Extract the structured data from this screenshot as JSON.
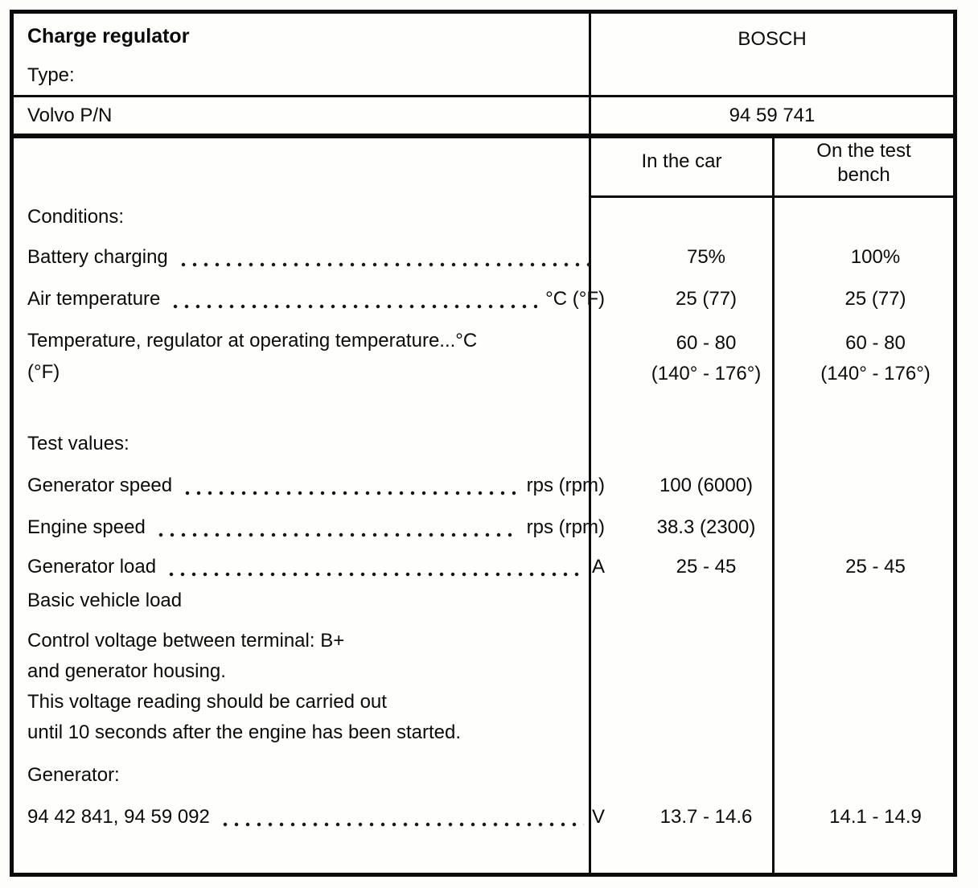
{
  "doc": {
    "title": "Charge regulator",
    "type_label": "Type:",
    "brand": "BOSCH",
    "pn_label": "Volvo P/N",
    "pn_value": "94 59 741",
    "col_in_car": "In the car",
    "col_test_bench": "On the test bench"
  },
  "rows": [
    {
      "kind": "heading",
      "label": "Conditions:"
    },
    {
      "kind": "spec",
      "label": "Battery charging",
      "unit": "",
      "car": "75%",
      "bench": "100%"
    },
    {
      "kind": "spec",
      "label": "Air temperature",
      "unit": "°C (°F)",
      "car": "25 (77)",
      "bench": "25 (77)"
    },
    {
      "kind": "spec2",
      "label": "Temperature, regulator at operating temperature...°C",
      "label2": "(°F)",
      "car": "60 - 80",
      "car2": "(140° - 176°)",
      "bench": "60 - 80",
      "bench2": "(140° - 176°)"
    },
    {
      "kind": "heading",
      "label": "Test values:"
    },
    {
      "kind": "spec",
      "label": "Generator speed",
      "unit": "rps (rpm)",
      "car": "100 (6000)",
      "bench": ""
    },
    {
      "kind": "spec",
      "label": "Engine speed",
      "unit": "rps (rpm)",
      "car": "38.3 (2300)",
      "bench": ""
    },
    {
      "kind": "spec",
      "label": "Generator load",
      "unit": "A",
      "car": "25 - 45",
      "bench": "25 - 45"
    },
    {
      "kind": "text",
      "label": "Basic vehicle load"
    },
    {
      "kind": "text",
      "label": "Control voltage between terminal: B+"
    },
    {
      "kind": "text",
      "label": "and generator housing."
    },
    {
      "kind": "text",
      "label": "This voltage reading should be carried out"
    },
    {
      "kind": "text",
      "label": "until 10 seconds after the engine has been started."
    },
    {
      "kind": "heading",
      "label": "Generator:"
    },
    {
      "kind": "spec",
      "label": "94 42 841, 94 59 092",
      "unit": "V",
      "car": "13.7 - 14.6",
      "bench": "14.1 - 14.9"
    }
  ]
}
